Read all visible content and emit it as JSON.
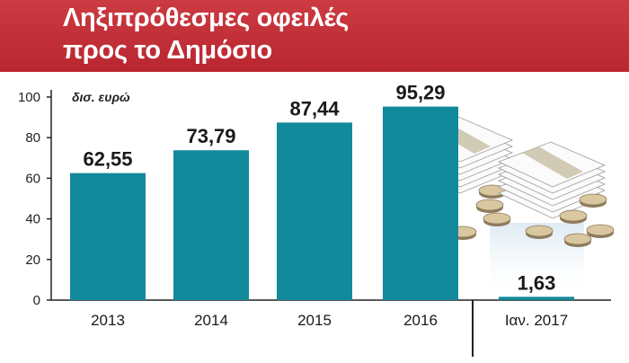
{
  "title_lines": [
    "Ληξιπρόθεσμες οφειλές",
    "προς το Δημόσιο"
  ],
  "colors": {
    "header": "#c4303a",
    "bar": "#13899c",
    "axis": "#222222"
  },
  "chart_data": {
    "type": "bar",
    "title": "Ληξιπρόθεσμες οφειλές προς το Δημόσιο",
    "unit_label": "δισ. ευρώ",
    "categories": [
      "2013",
      "2014",
      "2015",
      "2016",
      "Ιαν. 2017"
    ],
    "values": [
      62.55,
      73.79,
      87.44,
      95.29,
      1.63
    ],
    "value_labels": [
      "62,55",
      "73,79",
      "87,44",
      "95,29",
      "1,63"
    ],
    "yticks": [
      0,
      20,
      40,
      60,
      80,
      100
    ],
    "ylim": [
      0,
      100
    ],
    "grid": false,
    "xlabel": "",
    "ylabel": ""
  }
}
